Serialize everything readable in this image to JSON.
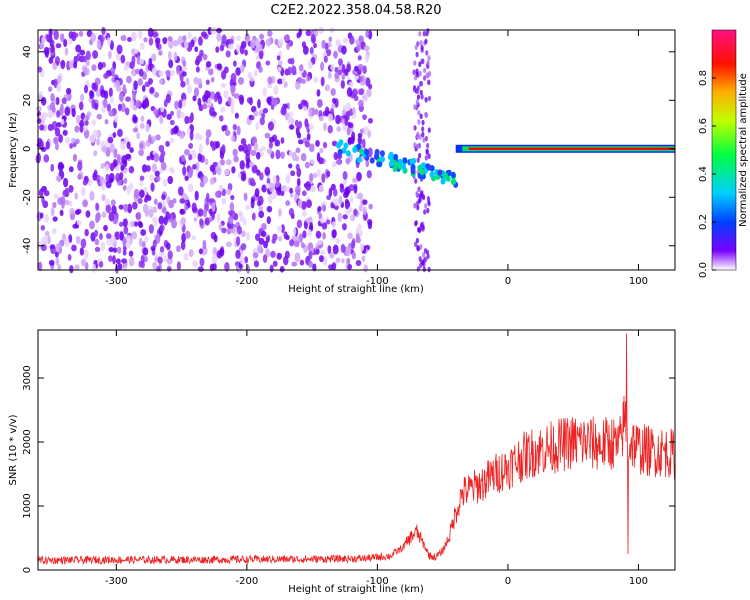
{
  "title": "C2E2.2022.358.04.58.R20",
  "colors": {
    "axis": "#000000",
    "snr_line": "#ee2222",
    "spectrogram_dots": "#6a00ee",
    "ridge": "#ff0000"
  },
  "colorbar": {
    "label": "Normalized spectral amplitude",
    "ticks": [
      "0.0",
      "0.2",
      "0.4",
      "0.6",
      "0.8"
    ],
    "range": [
      0,
      1
    ],
    "colormap": "gist_rainbow"
  },
  "chart_data": [
    {
      "type": "heatmap",
      "name": "spectrogram",
      "xlabel": "Height of straight line (km)",
      "ylabel": "Frequency (Hz)",
      "xlim": [
        -360,
        128
      ],
      "ylim": [
        -50,
        49
      ],
      "xticks": [
        -300,
        -200,
        -100,
        0,
        100
      ],
      "yticks": [
        -40,
        -20,
        0,
        20,
        40
      ],
      "grid": false,
      "features": {
        "broadband_noise_x": [
          -360,
          -105
        ],
        "gap_x": [
          -103,
          -73
        ],
        "ridge_frequency_hz": 0,
        "ridge_start_x": -130
      }
    },
    {
      "type": "line",
      "name": "snr",
      "xlabel": "Height of straight line (km)",
      "ylabel": "SNR (10 * v/v)",
      "xlim": [
        -360,
        128
      ],
      "ylim": [
        0,
        3750
      ],
      "xticks": [
        -300,
        -200,
        -100,
        0,
        100
      ],
      "yticks": [
        0,
        1000,
        2000,
        3000
      ],
      "grid": false,
      "series": [
        {
          "x": [
            -360,
            -300,
            -250,
            -200,
            -150,
            -110,
            -90,
            -80,
            -75,
            -70,
            -65,
            -60,
            -55,
            -50,
            -45,
            -40,
            -35,
            -30,
            -25,
            -20,
            -10,
            0,
            10,
            20,
            30,
            40,
            50,
            60,
            70,
            80,
            85,
            90,
            92,
            95,
            100,
            110,
            120,
            128
          ],
          "values": [
            150,
            160,
            160,
            165,
            170,
            180,
            220,
            360,
            500,
            600,
            420,
            220,
            200,
            300,
            520,
            900,
            1200,
            1250,
            1300,
            1350,
            1500,
            1600,
            1750,
            1850,
            1900,
            1950,
            2000,
            2000,
            1950,
            2000,
            1900,
            2400,
            1900,
            2000,
            1900,
            1850,
            1850,
            1800
          ]
        }
      ]
    }
  ]
}
